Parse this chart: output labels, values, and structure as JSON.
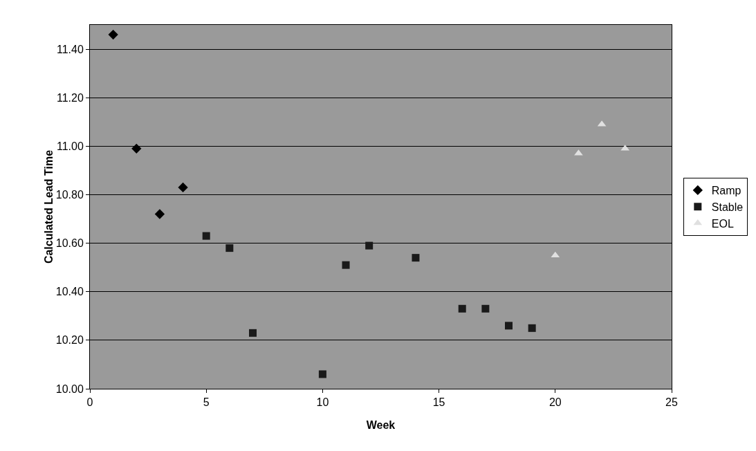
{
  "chart_data": {
    "type": "scatter",
    "xlabel": "Week",
    "ylabel": "Calculated Lead Time",
    "series": [
      {
        "name": "Ramp",
        "color": "#000000",
        "marker": "diamond",
        "x": [
          1,
          2,
          3,
          4
        ],
        "values": [
          11.46,
          10.99,
          10.72,
          10.83
        ]
      },
      {
        "name": "Stable",
        "color": "#1a1a1a",
        "marker": "square",
        "x": [
          5,
          6,
          7,
          10,
          11,
          12,
          14,
          16,
          17,
          18,
          19
        ],
        "values": [
          10.63,
          10.58,
          10.23,
          10.06,
          10.51,
          10.59,
          10.54,
          10.33,
          10.33,
          10.26,
          10.25
        ]
      },
      {
        "name": "EOL",
        "color": "#e0e0e0",
        "marker": "triangle",
        "x": [
          20,
          21,
          22,
          23
        ],
        "values": [
          10.55,
          10.97,
          11.09,
          10.99
        ]
      }
    ],
    "xlim": [
      0,
      25
    ],
    "xticks": [
      0,
      5,
      10,
      15,
      20,
      25
    ],
    "ylim": [
      10,
      11.5
    ],
    "yticks": [
      {
        "value": 10,
        "label": "10.00"
      },
      {
        "value": 10.2,
        "label": "10.20"
      },
      {
        "value": 10.4,
        "label": "10.40"
      },
      {
        "value": 10.6,
        "label": "10.60"
      },
      {
        "value": 10.8,
        "label": "10.80"
      },
      {
        "value": 11,
        "label": "11.00"
      },
      {
        "value": 11.2,
        "label": "11.20"
      },
      {
        "value": 11.4,
        "label": "11.40"
      }
    ],
    "grid": "y",
    "legend": "right"
  }
}
